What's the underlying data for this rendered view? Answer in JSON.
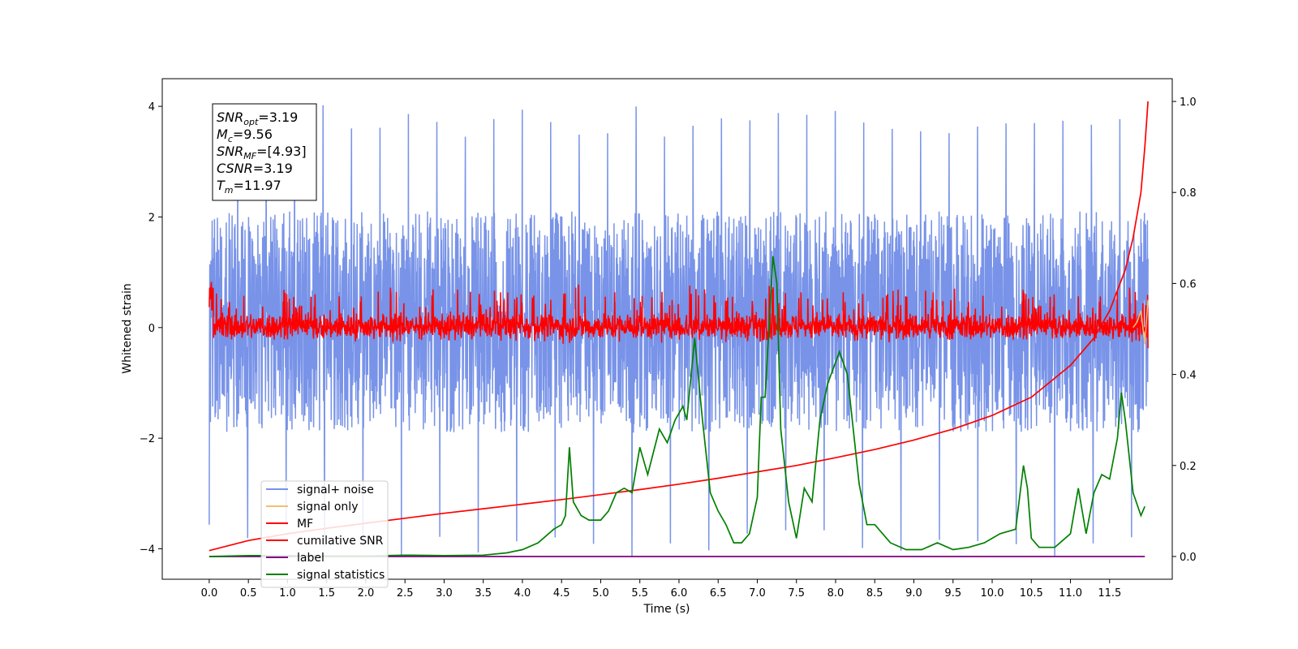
{
  "chart_data": {
    "type": "line",
    "title": "",
    "xlabel": "Time (s)",
    "ylabel": "Whitened strain",
    "xlim": [
      -0.6,
      12.3
    ],
    "ylim": [
      -4.55,
      4.5
    ],
    "y2lim": [
      -0.05,
      1.05
    ],
    "x_ticks": [
      0.0,
      0.5,
      1.0,
      1.5,
      2.0,
      2.5,
      3.0,
      3.5,
      4.0,
      4.5,
      5.0,
      5.5,
      6.0,
      6.5,
      7.0,
      7.5,
      8.0,
      8.5,
      9.0,
      9.5,
      10.0,
      10.5,
      11.0,
      11.5
    ],
    "x_tick_labels": [
      "0.0",
      "0.5",
      "1.0",
      "1.5",
      "2.0",
      "2.5",
      "3.0",
      "3.5",
      "4.0",
      "4.5",
      "5.0",
      "5.5",
      "6.0",
      "6.5",
      "7.0",
      "7.5",
      "8.0",
      "8.5",
      "9.0",
      "9.5",
      "10.0",
      "10.5",
      "11.0",
      "11.5"
    ],
    "y_ticks": [
      -4,
      -2,
      0,
      2,
      4
    ],
    "y_tick_labels": [
      "−4",
      "−2",
      "0",
      "2",
      "4"
    ],
    "y2_ticks": [
      0.0,
      0.2,
      0.4,
      0.6,
      0.8,
      1.0
    ],
    "y2_tick_labels": [
      "0.0",
      "0.2",
      "0.4",
      "0.6",
      "0.8",
      "1.0"
    ],
    "grid": false,
    "legend_position": "lower-left",
    "legend": [
      "signal+ noise",
      "signal only",
      "MF",
      "cumilative SNR",
      "label",
      "signal statistics"
    ],
    "colors": {
      "signal_noise": "#7893e8",
      "signal_only": "#f0c070",
      "mf": "#ff0000",
      "cumulative_snr": "#ff0000",
      "label": "#800080",
      "signal_statistics": "#008000"
    },
    "series": [
      {
        "name": "signal+ noise",
        "axis": "left",
        "x_range": [
          0.0,
          11.99
        ],
        "envelope_typical": [
          -2.2,
          2.4
        ],
        "peak_max": 4.05,
        "peak_min": -4.15
      },
      {
        "name": "signal only",
        "axis": "left",
        "x": [
          11.8,
          11.85,
          11.9,
          11.95,
          11.99
        ],
        "y": [
          0.0,
          0.1,
          0.3,
          -0.3,
          0.5
        ]
      },
      {
        "name": "MF",
        "axis": "left",
        "x_range": [
          0.0,
          11.99
        ],
        "envelope_typical": [
          -0.3,
          0.5
        ],
        "peak_max": 0.9,
        "peak_min": -0.4
      },
      {
        "name": "cumilative SNR",
        "axis": "right",
        "x": [
          0.0,
          0.5,
          1.0,
          1.5,
          2.0,
          2.5,
          3.0,
          3.5,
          4.0,
          4.5,
          5.0,
          5.5,
          6.0,
          6.5,
          7.0,
          7.5,
          8.0,
          8.5,
          9.0,
          9.5,
          10.0,
          10.5,
          11.0,
          11.3,
          11.5,
          11.7,
          11.8,
          11.9,
          11.95,
          11.99
        ],
        "y": [
          0.013,
          0.035,
          0.05,
          0.062,
          0.073,
          0.084,
          0.095,
          0.105,
          0.115,
          0.125,
          0.136,
          0.147,
          0.159,
          0.172,
          0.186,
          0.2,
          0.217,
          0.235,
          0.256,
          0.28,
          0.31,
          0.35,
          0.42,
          0.48,
          0.54,
          0.63,
          0.7,
          0.8,
          0.9,
          1.0
        ]
      },
      {
        "name": "label",
        "axis": "right",
        "x": [
          0.0,
          11.95
        ],
        "y": [
          0.0,
          0.0
        ]
      },
      {
        "name": "signal statistics",
        "axis": "right",
        "x": [
          0.0,
          0.5,
          1.0,
          1.5,
          2.0,
          2.5,
          3.0,
          3.5,
          3.8,
          4.0,
          4.2,
          4.4,
          4.5,
          4.55,
          4.6,
          4.65,
          4.75,
          4.85,
          5.0,
          5.1,
          5.2,
          5.3,
          5.4,
          5.5,
          5.6,
          5.75,
          5.85,
          5.95,
          6.05,
          6.1,
          6.2,
          6.3,
          6.4,
          6.5,
          6.6,
          6.7,
          6.8,
          6.9,
          7.0,
          7.05,
          7.1,
          7.2,
          7.25,
          7.3,
          7.4,
          7.5,
          7.6,
          7.7,
          7.8,
          7.9,
          8.05,
          8.15,
          8.3,
          8.4,
          8.5,
          8.7,
          8.9,
          9.1,
          9.3,
          9.5,
          9.7,
          9.9,
          10.1,
          10.3,
          10.35,
          10.4,
          10.45,
          10.5,
          10.6,
          10.8,
          11.0,
          11.1,
          11.2,
          11.3,
          11.4,
          11.5,
          11.6,
          11.65,
          11.7,
          11.8,
          11.9,
          11.95
        ],
        "y": [
          0.0,
          0.002,
          0.002,
          0.001,
          0.001,
          0.003,
          0.002,
          0.003,
          0.008,
          0.015,
          0.03,
          0.06,
          0.07,
          0.09,
          0.24,
          0.12,
          0.09,
          0.08,
          0.08,
          0.1,
          0.14,
          0.15,
          0.14,
          0.24,
          0.18,
          0.28,
          0.25,
          0.3,
          0.33,
          0.3,
          0.48,
          0.3,
          0.14,
          0.1,
          0.07,
          0.03,
          0.03,
          0.05,
          0.13,
          0.35,
          0.35,
          0.66,
          0.6,
          0.28,
          0.12,
          0.04,
          0.15,
          0.12,
          0.3,
          0.38,
          0.45,
          0.4,
          0.16,
          0.07,
          0.07,
          0.03,
          0.015,
          0.015,
          0.03,
          0.015,
          0.02,
          0.03,
          0.05,
          0.06,
          0.13,
          0.2,
          0.15,
          0.04,
          0.02,
          0.02,
          0.05,
          0.15,
          0.05,
          0.14,
          0.18,
          0.17,
          0.26,
          0.36,
          0.3,
          0.14,
          0.09,
          0.11
        ]
      }
    ],
    "annotation": {
      "lines": [
        {
          "base": "SNR",
          "sub": "opt",
          "value": "=3.19"
        },
        {
          "base": "M",
          "sub": "c",
          "value": "=9.56"
        },
        {
          "base": "SNR",
          "sub": "MF",
          "value": "=[4.93]"
        },
        {
          "base": "CSNR",
          "sub": "",
          "value": "=3.19"
        },
        {
          "base": "T",
          "sub": "m",
          "value": "=11.97"
        }
      ]
    }
  }
}
